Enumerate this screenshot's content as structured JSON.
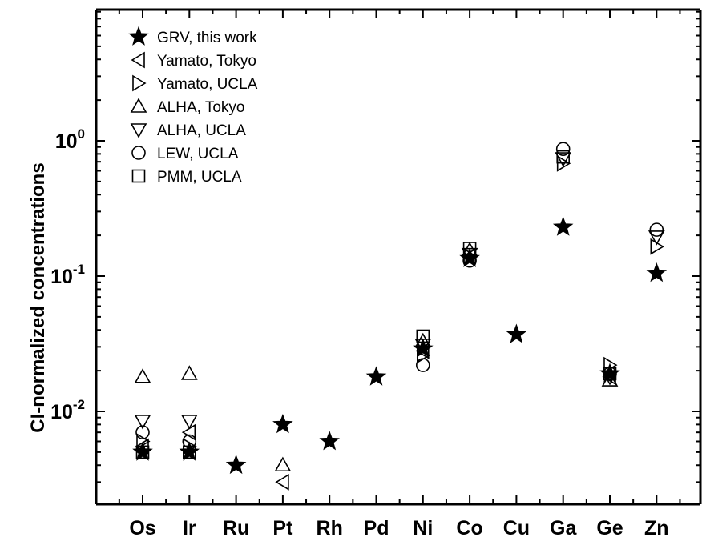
{
  "chart_data": {
    "type": "scatter",
    "title": "",
    "xlabel": "",
    "ylabel": "CI-normalized concentrations",
    "yscale": "log",
    "ylim": [
      0.0013,
      10
    ],
    "grid": false,
    "legend_position": "top-left",
    "categories": [
      "Os",
      "Ir",
      "Ru",
      "Pt",
      "Rh",
      "Pd",
      "Ni",
      "Co",
      "Cu",
      "Ga",
      "Ge",
      "Zn"
    ],
    "y_ticks": [
      {
        "value": 1,
        "base": "10",
        "exp": "0"
      },
      {
        "value": 0.1,
        "base": "10",
        "exp": "-1"
      },
      {
        "value": 0.01,
        "base": "10",
        "exp": "-2"
      }
    ],
    "series": [
      {
        "name": "GRV, this work",
        "marker": "star-filled",
        "points": [
          [
            "Os",
            0.005
          ],
          [
            "Ir",
            0.005
          ],
          [
            "Ru",
            0.004
          ],
          [
            "Pt",
            0.008
          ],
          [
            "Rh",
            0.006
          ],
          [
            "Pd",
            0.018
          ],
          [
            "Ni",
            0.029
          ],
          [
            "Co",
            0.135
          ],
          [
            "Cu",
            0.037
          ],
          [
            "Ga",
            0.23
          ],
          [
            "Ge",
            0.019
          ],
          [
            "Zn",
            0.105
          ]
        ]
      },
      {
        "name": "Yamato, Tokyo",
        "marker": "triangle-left",
        "points": [
          [
            "Os",
            0.0055
          ],
          [
            "Ir",
            0.007
          ],
          [
            "Pt",
            0.003
          ],
          [
            "Ni",
            0.028
          ],
          [
            "Co",
            0.14
          ],
          [
            "Ge",
            0.018
          ]
        ]
      },
      {
        "name": "Yamato, UCLA",
        "marker": "triangle-right",
        "points": [
          [
            "Os",
            0.006
          ],
          [
            "Ir",
            0.0055
          ],
          [
            "Ni",
            0.026
          ],
          [
            "Co",
            0.14
          ],
          [
            "Ga",
            0.68
          ],
          [
            "Ge",
            0.022
          ],
          [
            "Zn",
            0.165
          ]
        ]
      },
      {
        "name": "ALHA, Tokyo",
        "marker": "triangle-up",
        "points": [
          [
            "Os",
            0.018
          ],
          [
            "Ir",
            0.019
          ],
          [
            "Pt",
            0.004
          ],
          [
            "Ni",
            0.033
          ],
          [
            "Co",
            0.155
          ],
          [
            "Ge",
            0.017
          ]
        ]
      },
      {
        "name": "ALHA, UCLA",
        "marker": "triangle-down",
        "points": [
          [
            "Os",
            0.0085
          ],
          [
            "Ir",
            0.0085
          ],
          [
            "Ni",
            0.031
          ],
          [
            "Co",
            0.145
          ],
          [
            "Ga",
            0.74
          ],
          [
            "Ge",
            0.018
          ],
          [
            "Zn",
            0.195
          ]
        ]
      },
      {
        "name": "LEW, UCLA",
        "marker": "circle",
        "points": [
          [
            "Os",
            0.007
          ],
          [
            "Ir",
            0.006
          ],
          [
            "Ni",
            0.022
          ],
          [
            "Co",
            0.13
          ],
          [
            "Ga",
            0.87
          ],
          [
            "Ge",
            0.019
          ],
          [
            "Zn",
            0.22
          ]
        ]
      },
      {
        "name": "PMM, UCLA",
        "marker": "square",
        "points": [
          [
            "Os",
            0.005
          ],
          [
            "Ir",
            0.005
          ],
          [
            "Ni",
            0.036
          ],
          [
            "Co",
            0.16
          ],
          [
            "Ga",
            0.76
          ],
          [
            "Ge",
            0.019
          ]
        ]
      }
    ]
  }
}
